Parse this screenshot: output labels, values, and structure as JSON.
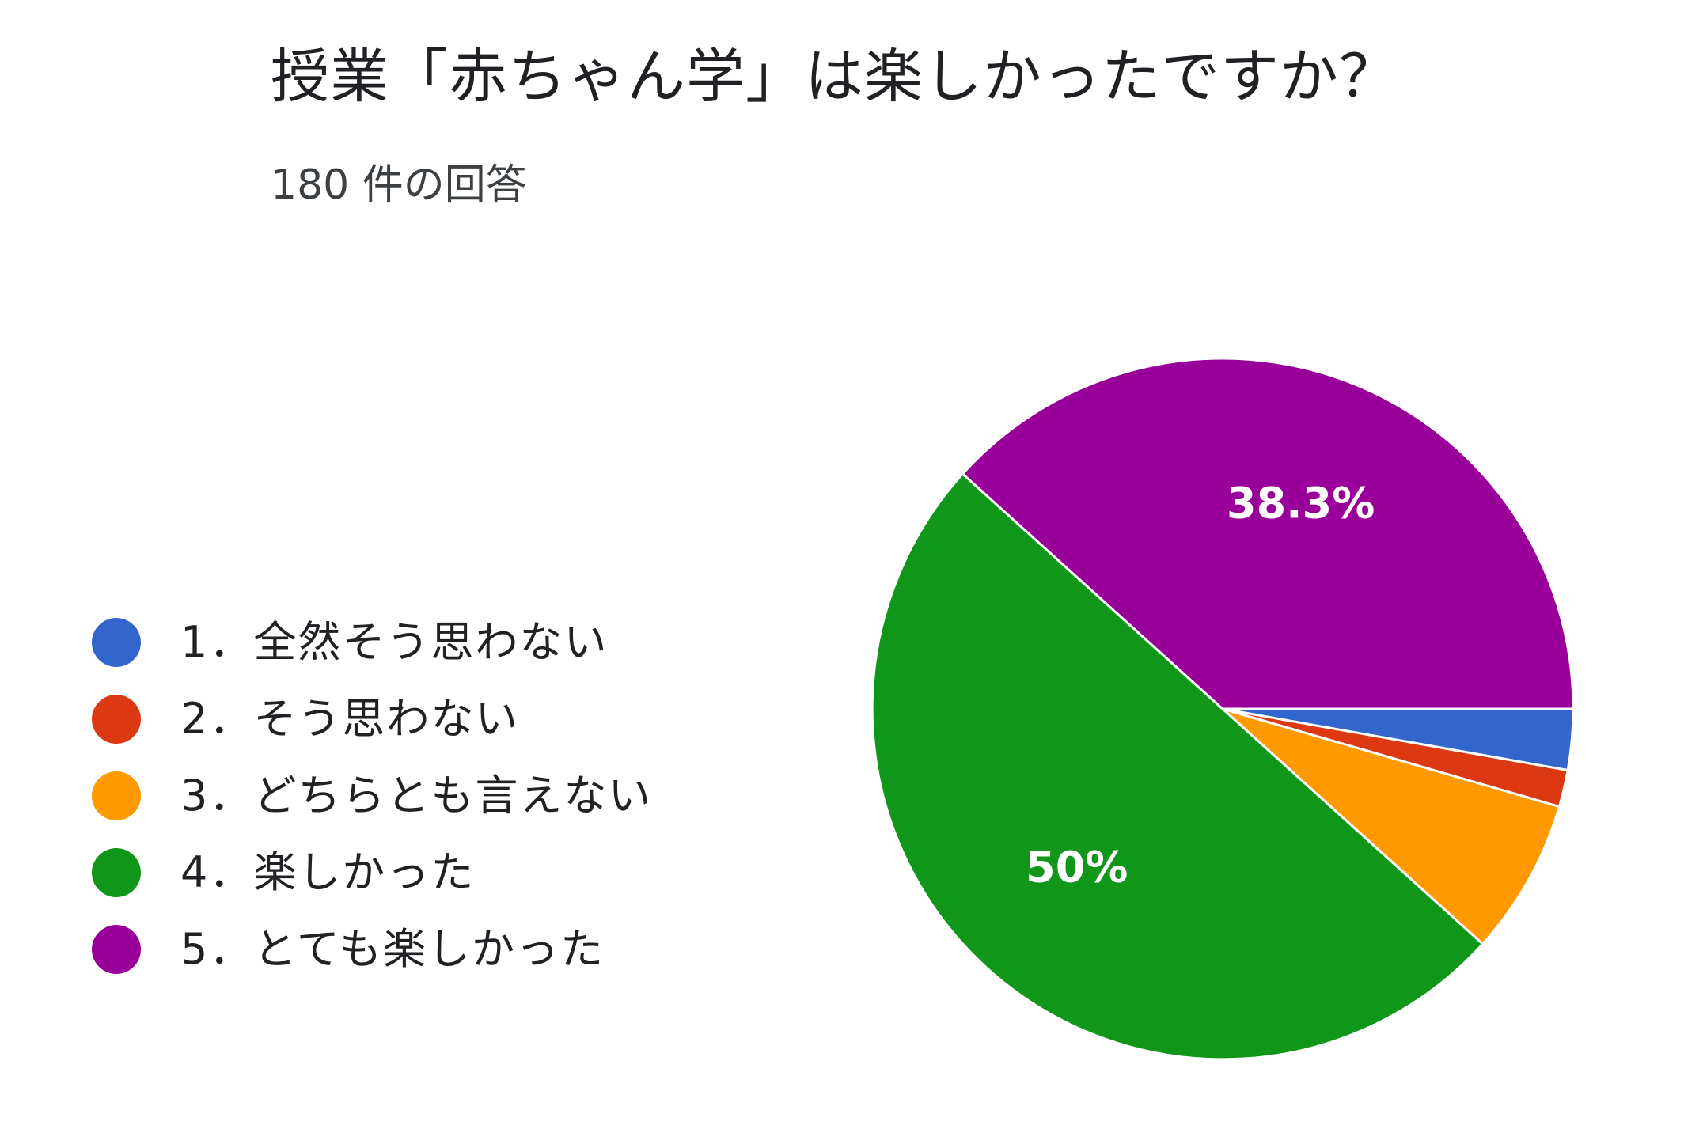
{
  "chart_data": {
    "type": "pie",
    "title": "授業「赤ちゃん学」は楽しかったですか？",
    "subtitle": "180 件の回答",
    "categories": [
      "1．全然そう思わない",
      "2．そう思わない",
      "3．どちらとも言えない",
      "4．楽しかった",
      "5．とても楽しかった"
    ],
    "values": [
      2.8,
      1.7,
      7.2,
      50,
      38.3
    ],
    "value_labels": [
      "",
      "",
      "",
      "50%",
      "38.3%"
    ],
    "colors": [
      "#3366cc",
      "#dc3912",
      "#ff9900",
      "#109618",
      "#990099"
    ],
    "legend_position": "left"
  }
}
